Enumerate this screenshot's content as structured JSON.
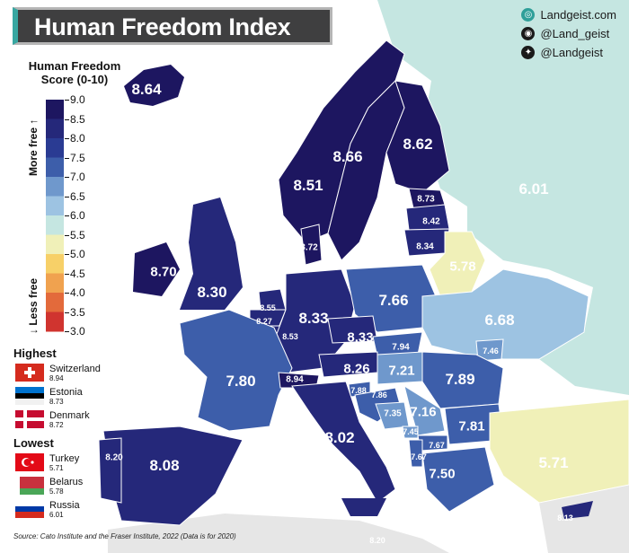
{
  "title": "Human Freedom Index",
  "social": [
    {
      "icon": "globe-icon",
      "text": "Landgeist.com"
    },
    {
      "icon": "instagram-icon",
      "text": "@Land_geist"
    },
    {
      "icon": "twitter-icon",
      "text": "@Landgeist"
    }
  ],
  "legend": {
    "title": "Human Freedom Score (0-10)",
    "more_free": "More free ↑",
    "less_free": "↓ Less free",
    "ticks": [
      "9.0",
      "8.5",
      "8.0",
      "7.5",
      "7.0",
      "6.5",
      "6.0",
      "5.5",
      "5.0",
      "4.5",
      "4.0",
      "3.5",
      "3.0"
    ],
    "colors": [
      "#1d1660",
      "#25287a",
      "#2a3b93",
      "#3d5eaa",
      "#6f98cc",
      "#9dc3e2",
      "#c5e6e1",
      "#f0f0b8",
      "#f7d068",
      "#f0a24f",
      "#e36a3b",
      "#d0342f",
      "#b71c2b"
    ]
  },
  "highest": {
    "heading": "Highest",
    "entries": [
      {
        "name": "Switzerland",
        "value": "8.94",
        "flag": "switzerland-flag-icon"
      },
      {
        "name": "Estonia",
        "value": "8.73",
        "flag": "estonia-flag-icon"
      },
      {
        "name": "Denmark",
        "value": "8.72",
        "flag": "denmark-flag-icon"
      }
    ]
  },
  "lowest": {
    "heading": "Lowest",
    "entries": [
      {
        "name": "Turkey",
        "value": "5.71",
        "flag": "turkey-flag-icon"
      },
      {
        "name": "Belarus",
        "value": "5.78",
        "flag": "belarus-flag-icon"
      },
      {
        "name": "Russia",
        "value": "6.01",
        "flag": "russia-flag-icon"
      }
    ]
  },
  "map_labels": [
    {
      "key": "iceland",
      "text": "8.64"
    },
    {
      "key": "norway",
      "text": "8.51"
    },
    {
      "key": "sweden",
      "text": "8.66"
    },
    {
      "key": "finland",
      "text": "8.62"
    },
    {
      "key": "russia",
      "text": "6.01"
    },
    {
      "key": "estonia",
      "text": "8.73"
    },
    {
      "key": "latvia",
      "text": "8.42"
    },
    {
      "key": "lithuania",
      "text": "8.34"
    },
    {
      "key": "denmark",
      "text": "8.72"
    },
    {
      "key": "belarus",
      "text": "5.78"
    },
    {
      "key": "ireland",
      "text": "8.70"
    },
    {
      "key": "uk",
      "text": "8.30"
    },
    {
      "key": "netherlands",
      "text": "8.55"
    },
    {
      "key": "belgium",
      "text": "8.27"
    },
    {
      "key": "luxembourg",
      "text": "8.53"
    },
    {
      "key": "germany",
      "text": "8.33"
    },
    {
      "key": "poland",
      "text": "7.66"
    },
    {
      "key": "ukraine",
      "text": "6.68"
    },
    {
      "key": "czechia",
      "text": "8.33"
    },
    {
      "key": "slovakia",
      "text": "7.94"
    },
    {
      "key": "moldova",
      "text": "7.46"
    },
    {
      "key": "austria",
      "text": "8.26"
    },
    {
      "key": "hungary",
      "text": "7.21"
    },
    {
      "key": "romania",
      "text": "7.89"
    },
    {
      "key": "france",
      "text": "7.80"
    },
    {
      "key": "switzerland",
      "text": "8.94"
    },
    {
      "key": "slovenia",
      "text": "7.88"
    },
    {
      "key": "croatia",
      "text": "7.86"
    },
    {
      "key": "bosnia",
      "text": "7.35"
    },
    {
      "key": "serbia",
      "text": "7.16"
    },
    {
      "key": "bulgaria",
      "text": "7.81"
    },
    {
      "key": "montenegro",
      "text": "7.45"
    },
    {
      "key": "northmacedonia",
      "text": "7.67"
    },
    {
      "key": "albania",
      "text": "7.67"
    },
    {
      "key": "greece",
      "text": "7.50"
    },
    {
      "key": "italy",
      "text": "8.02"
    },
    {
      "key": "spain",
      "text": "8.08"
    },
    {
      "key": "portugal",
      "text": "8.20"
    },
    {
      "key": "turkey",
      "text": "5.71"
    },
    {
      "key": "cyprus",
      "text": "8.13"
    },
    {
      "key": "malta",
      "text": "8.20"
    }
  ],
  "source": "Source: Cato Institute and the Fraser Institute, 2022 (Data is for 2020)"
}
